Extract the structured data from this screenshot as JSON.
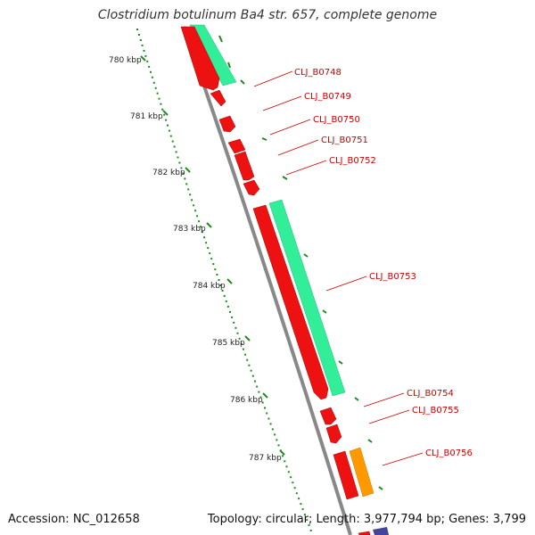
{
  "header": {
    "title": "Clostridium botulinum Ba4 str. 657, complete genome"
  },
  "footer": {
    "accession": "Accession: NC_012658",
    "topology": "Topology: circular; Length: 3,977,794 bp; Genes: 3,799"
  },
  "ruler": {
    "labels": [
      "780 kbp",
      "781 kbp",
      "782 kbp",
      "783 kbp",
      "784 kbp",
      "785 kbp",
      "786 kbp",
      "787 kbp"
    ]
  },
  "genes": [
    {
      "name": "CLJ_B0748"
    },
    {
      "name": "CLJ_B0749"
    },
    {
      "name": "CLJ_B0750"
    },
    {
      "name": "CLJ_B0751"
    },
    {
      "name": "CLJ_B0752"
    },
    {
      "name": "CLJ_B0753"
    },
    {
      "name": "CLJ_B0754"
    },
    {
      "name": "CLJ_B0755"
    },
    {
      "name": "CLJ_B0756"
    }
  ],
  "colors": {
    "cds_forward": "#ee1111",
    "gene_track": "#33ee99",
    "rna_feature": "#ff9900",
    "backbone": "#888888",
    "ruler_tick": "#228822",
    "label": "#cc0000",
    "partial_feature": "#444499"
  }
}
